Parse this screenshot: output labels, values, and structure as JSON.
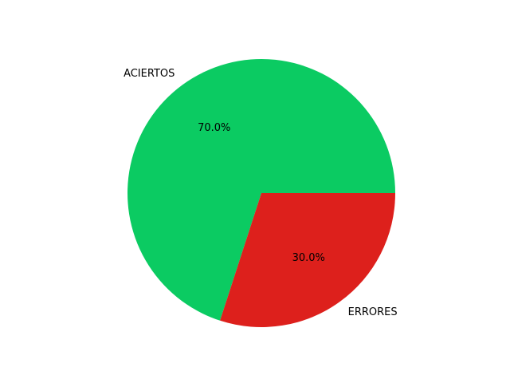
{
  "chart_data": {
    "type": "pie",
    "title": "",
    "labels": [
      "ACIERTOS",
      "ERRORES"
    ],
    "values": [
      70.0,
      30.0
    ],
    "percent_labels": [
      "70.0%",
      "30.0%"
    ],
    "colors": [
      "#0bcb62",
      "#dd201c"
    ],
    "start_angle_deg": 0,
    "direction": "counterclockwise"
  }
}
